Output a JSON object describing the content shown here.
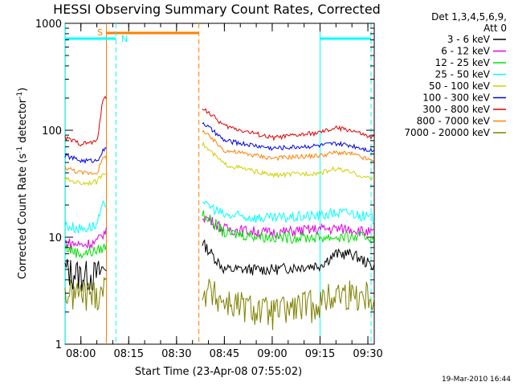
{
  "chart_data": {
    "type": "line",
    "title": "HESSI Observing Summary Count Rates, Corrected",
    "xlabel": "Start Time (23-Apr-08 07:55:02)",
    "ylabel_main": "Corrected Count Rate (s",
    "ylabel_sup1": "-1",
    "ylabel_mid": " detector",
    "ylabel_sup2": "-1",
    "ylabel_end": ")",
    "yscale": "log",
    "xlim": [
      "07:55:02",
      "09:32:00"
    ],
    "ylim": [
      1,
      1000
    ],
    "x_ticks": [
      "08:00",
      "08:15",
      "08:30",
      "08:45",
      "09:00",
      "09:15",
      "09:30"
    ],
    "y_ticks": [
      "1",
      "10",
      "100",
      "1000"
    ],
    "legend_header": [
      "Det 1,3,4,5,6,9,",
      "Att 0"
    ],
    "legend_placement": "right",
    "series": [
      {
        "name": "3 - 6 keV",
        "color": "#000000",
        "x": [
          "07:55",
          "08:00",
          "08:05",
          "08:07",
          "08:38",
          "08:45",
          "09:00",
          "09:15",
          "09:20",
          "09:25",
          "09:31"
        ],
        "values": [
          5,
          4.5,
          4.5,
          5,
          9,
          5,
          5,
          5.5,
          7,
          7,
          5.5
        ]
      },
      {
        "name": "6 - 12 keV",
        "color": "#e000e0",
        "x": [
          "07:55",
          "08:00",
          "08:05",
          "08:07",
          "08:38",
          "08:45",
          "09:00",
          "09:15",
          "09:20",
          "09:25",
          "09:31"
        ],
        "values": [
          9,
          8.5,
          9,
          11,
          16,
          12,
          11,
          12,
          12,
          12,
          11
        ]
      },
      {
        "name": "12 - 25 keV",
        "color": "#00e000",
        "x": [
          "07:55",
          "08:00",
          "08:05",
          "08:07",
          "08:38",
          "08:45",
          "09:00",
          "09:15",
          "09:20",
          "09:25",
          "09:31"
        ],
        "values": [
          8,
          7,
          7.5,
          8,
          17,
          11,
          10,
          10,
          10,
          10,
          10
        ]
      },
      {
        "name": "25 - 50 keV",
        "color": "#00ffff",
        "x": [
          "07:55",
          "08:00",
          "08:05",
          "08:07",
          "08:38",
          "08:45",
          "09:00",
          "09:15",
          "09:20",
          "09:25",
          "09:31"
        ],
        "values": [
          13,
          12,
          13,
          20,
          22,
          16,
          15,
          16,
          17,
          17,
          15
        ]
      },
      {
        "name": "50 - 100 keV",
        "color": "#d0d000",
        "x": [
          "07:55",
          "08:00",
          "08:05",
          "08:07",
          "08:38",
          "08:45",
          "09:00",
          "09:15",
          "09:20",
          "09:25",
          "09:31"
        ],
        "values": [
          35,
          32,
          33,
          40,
          75,
          48,
          38,
          40,
          44,
          40,
          35
        ]
      },
      {
        "name": "100 - 300 keV",
        "color": "#0000e0",
        "x": [
          "07:55",
          "08:00",
          "08:05",
          "08:07",
          "08:38",
          "08:45",
          "09:00",
          "09:15",
          "09:20",
          "09:25",
          "09:31"
        ],
        "values": [
          58,
          52,
          52,
          65,
          120,
          80,
          68,
          72,
          75,
          72,
          65
        ]
      },
      {
        "name": "300 - 800 keV",
        "color": "#e00000",
        "x": [
          "07:55",
          "08:00",
          "08:05",
          "08:07",
          "08:38",
          "08:45",
          "09:00",
          "09:15",
          "09:20",
          "09:25",
          "09:31"
        ],
        "values": [
          85,
          75,
          78,
          200,
          165,
          110,
          85,
          95,
          105,
          100,
          85
        ]
      },
      {
        "name": "800 - 7000 keV",
        "color": "#ff8000",
        "x": [
          "07:55",
          "08:00",
          "08:05",
          "08:07",
          "08:38",
          "08:45",
          "09:00",
          "09:15",
          "09:20",
          "09:25",
          "09:31"
        ],
        "values": [
          45,
          40,
          40,
          55,
          100,
          65,
          55,
          58,
          62,
          60,
          52
        ]
      },
      {
        "name": "7000 - 20000 keV",
        "color": "#808000",
        "x": [
          "07:55",
          "08:00",
          "08:05",
          "08:07",
          "08:38",
          "08:45",
          "09:00",
          "09:15",
          "09:20",
          "09:25",
          "09:31"
        ],
        "values": [
          3,
          3,
          3,
          3.5,
          3.5,
          2.5,
          2,
          2.5,
          3,
          3,
          3
        ]
      }
    ],
    "annotations": {
      "S_label": "S",
      "N_label": "N",
      "flags": [
        {
          "label": "S",
          "color": "#ff8000",
          "x_start": "08:08",
          "x_end": "08:37"
        },
        {
          "label": "N",
          "color": "#00ffff",
          "x_start": "07:55",
          "x_end": "08:11"
        },
        {
          "label": "N",
          "color": "#00ffff",
          "x_start": "09:15",
          "x_end": "09:31"
        }
      ]
    },
    "footer_date": "19-Mar-2010 16:44"
  }
}
